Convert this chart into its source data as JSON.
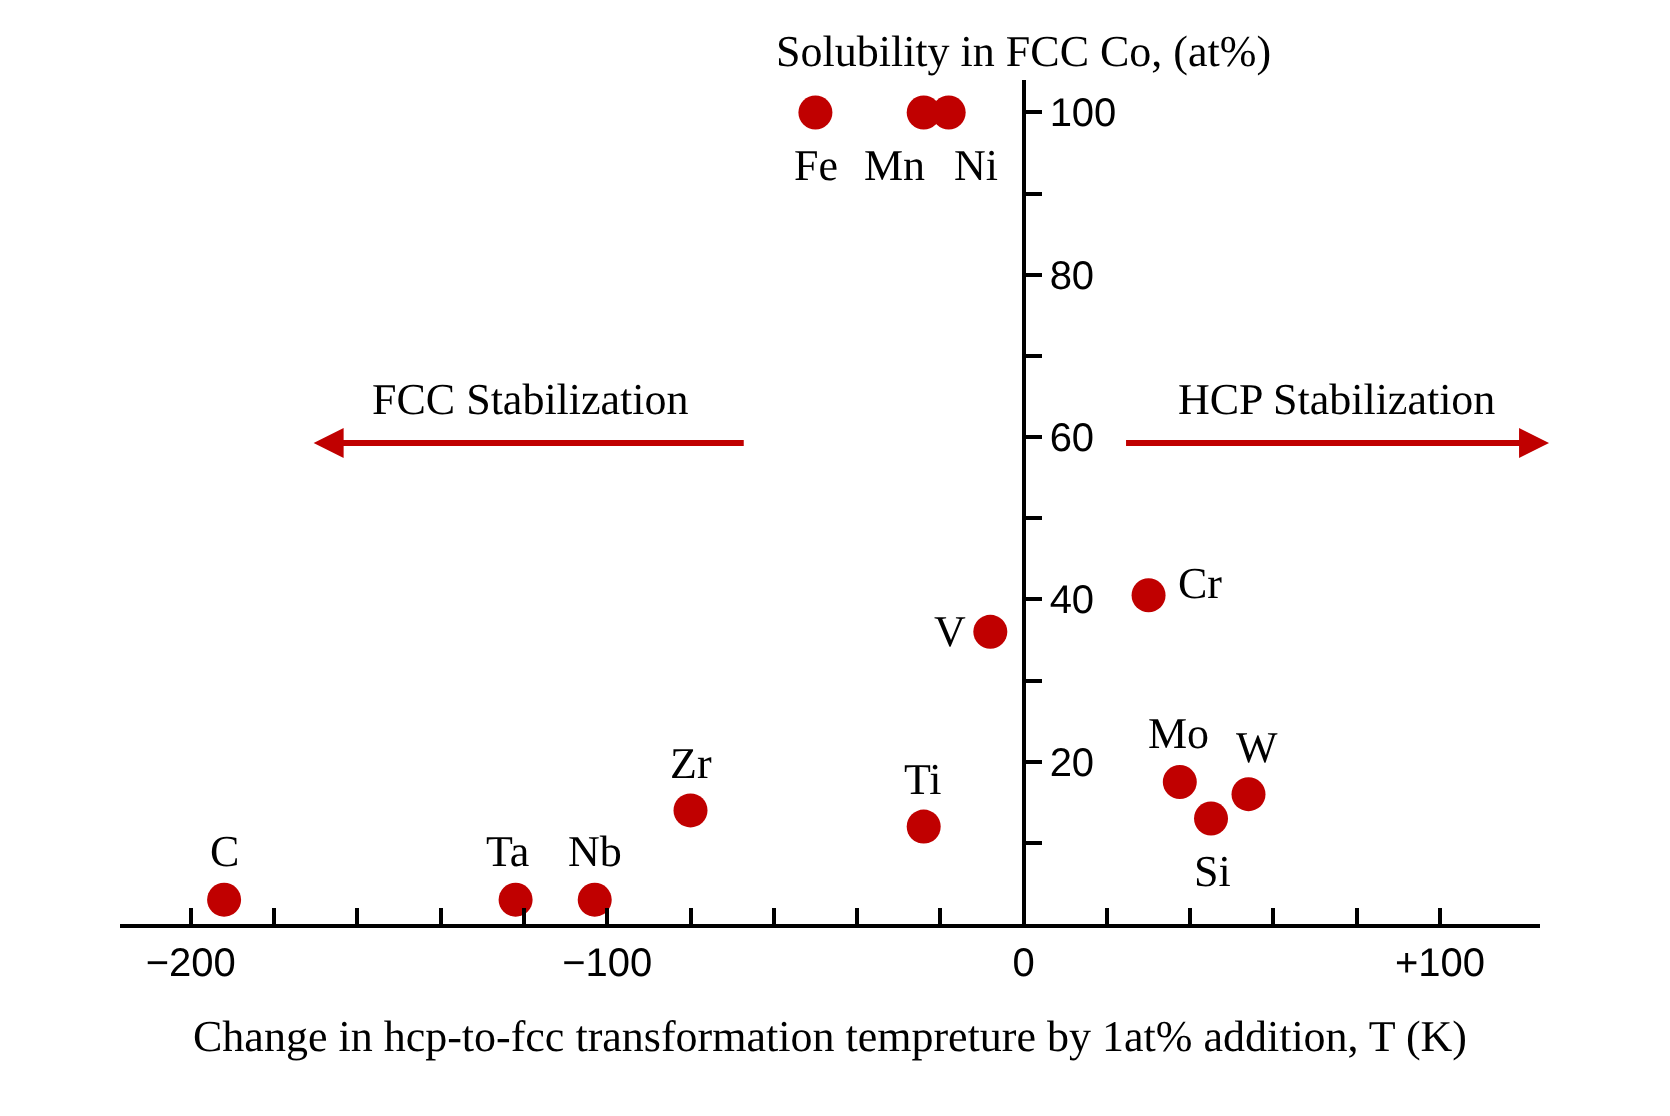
{
  "chart_data": {
    "type": "scatter",
    "xlabel": "Change in hcp-to-fcc transformation tempreture by 1at% addition, T (K)",
    "ylabel": "Solubility in FCC Co, (at%)",
    "x": [
      -192,
      -122,
      -103,
      -80,
      -24,
      -8,
      30,
      37.5,
      45,
      54,
      -50,
      -24,
      -18
    ],
    "series": [
      {
        "color": "#c00000",
        "values": [
          3,
          3,
          3,
          14,
          12,
          36,
          40.5,
          17.5,
          13,
          16,
          100,
          100,
          100
        ]
      }
    ],
    "marker": "circle",
    "grid": false,
    "xlim": [
      -217,
      124
    ],
    "ylim": [
      0,
      104
    ],
    "xticks": [
      {
        "value": -200,
        "label": "−200"
      },
      {
        "value": -180,
        "label": null
      },
      {
        "value": -160,
        "label": null
      },
      {
        "value": -140,
        "label": null
      },
      {
        "value": -120,
        "label": null
      },
      {
        "value": -100,
        "label": "−100"
      },
      {
        "value": -80,
        "label": null
      },
      {
        "value": -60,
        "label": null
      },
      {
        "value": -40,
        "label": null
      },
      {
        "value": -20,
        "label": null
      },
      0,
      {
        "value": 20,
        "label": null
      },
      {
        "value": 40,
        "label": null
      },
      {
        "value": 60,
        "label": null
      },
      {
        "value": 80,
        "label": null
      },
      {
        "value": 100,
        "label": "+100"
      }
    ],
    "yticks": [
      {
        "value": 10,
        "label": null
      },
      20,
      {
        "value": 30,
        "label": null
      },
      40,
      {
        "value": 50,
        "label": null
      },
      60,
      {
        "value": 70,
        "label": null
      },
      80,
      {
        "value": 90,
        "label": null
      },
      100
    ],
    "annotations": [
      {
        "text": "C",
        "x": -192,
        "y": 3
      },
      {
        "text": "Ta",
        "x": -122,
        "y": 3
      },
      {
        "text": "Nb",
        "x": -103,
        "y": 3
      },
      {
        "text": "Zr",
        "x": -80,
        "y": 14
      },
      {
        "text": "Ti",
        "x": -24,
        "y": 12
      },
      {
        "text": "V",
        "x": -8,
        "y": 36
      },
      {
        "text": "Cr",
        "x": 30,
        "y": 40.5
      },
      {
        "text": "Mo",
        "x": 37.5,
        "y": 17.5
      },
      {
        "text": "Si",
        "x": 45,
        "y": 13
      },
      {
        "text": "W",
        "x": 54,
        "y": 16
      },
      {
        "text": "Fe",
        "x": -50,
        "y": 100
      },
      {
        "text": "Mn",
        "x": -24,
        "y": 100
      },
      {
        "text": "Ni",
        "x": -18,
        "y": 100
      },
      "FCC Stabilization",
      "HCP Stabilization"
    ]
  }
}
